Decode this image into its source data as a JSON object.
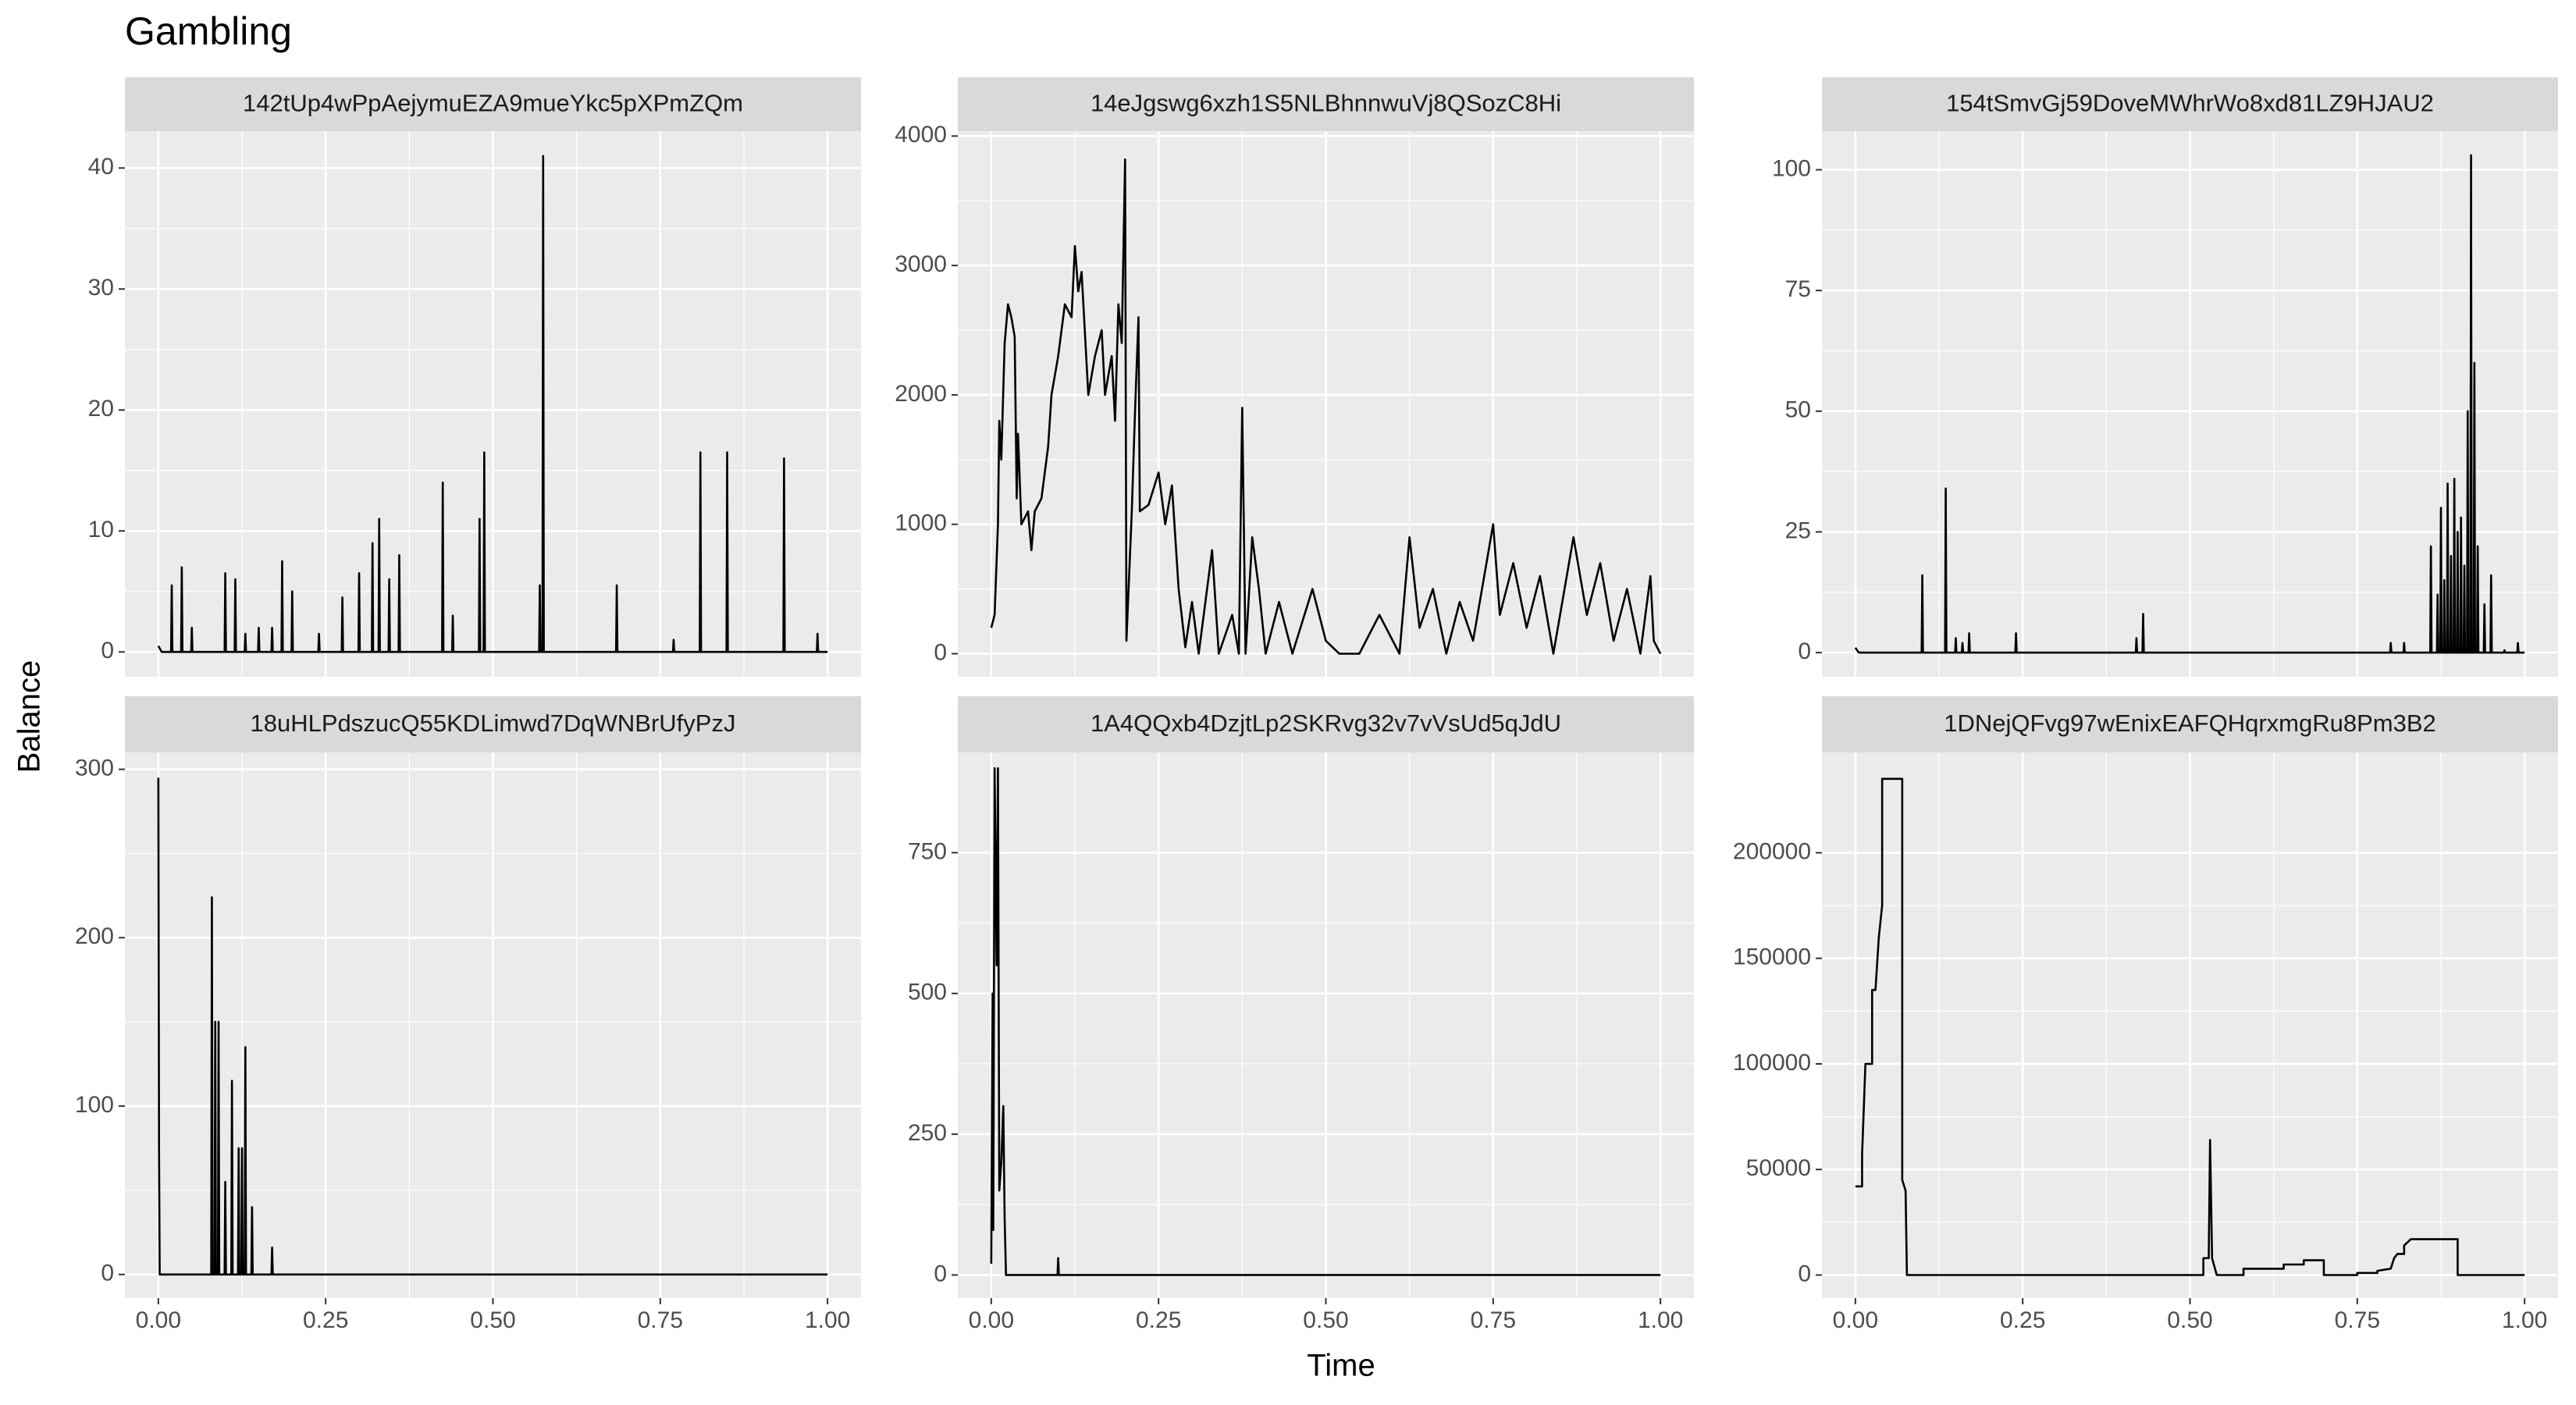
{
  "title": "Gambling",
  "xlabel": "Time",
  "ylabel": "Balance",
  "xlim": [
    -0.05,
    1.05
  ],
  "xticks": [
    {
      "value": 0,
      "label": "0.00"
    },
    {
      "value": 0.25,
      "label": "0.25"
    },
    {
      "value": 0.5,
      "label": "0.50"
    },
    {
      "value": 0.75,
      "label": "0.75"
    },
    {
      "value": 1,
      "label": "1.00"
    }
  ],
  "color": "#000000",
  "grid": true,
  "chart_data": [
    {
      "type": "line",
      "title": "142tUp4wPpAejymuEZA9mueYkc5pXPmZQm",
      "ylim": [
        -2.05,
        43.05
      ],
      "yticks": [
        0,
        10,
        20,
        30,
        40
      ],
      "x": [
        0,
        0.005,
        0.019,
        0.02,
        0.021,
        0.034,
        0.035,
        0.036,
        0.049,
        0.05,
        0.051,
        0.099,
        0.1,
        0.101,
        0.114,
        0.115,
        0.116,
        0.129,
        0.13,
        0.131,
        0.149,
        0.15,
        0.151,
        0.169,
        0.17,
        0.171,
        0.184,
        0.185,
        0.186,
        0.199,
        0.2,
        0.201,
        0.239,
        0.24,
        0.241,
        0.274,
        0.275,
        0.276,
        0.299,
        0.3,
        0.301,
        0.319,
        0.32,
        0.321,
        0.329,
        0.33,
        0.331,
        0.344,
        0.345,
        0.346,
        0.359,
        0.36,
        0.361,
        0.424,
        0.425,
        0.426,
        0.439,
        0.44,
        0.441,
        0.479,
        0.48,
        0.481,
        0.486,
        0.487,
        0.488,
        0.569,
        0.57,
        0.571,
        0.574,
        0.575,
        0.576,
        0.684,
        0.685,
        0.686,
        0.769,
        0.77,
        0.771,
        0.809,
        0.81,
        0.811,
        0.849,
        0.85,
        0.851,
        0.934,
        0.935,
        0.936,
        0.984,
        0.985,
        0.986,
        1.0
      ],
      "values": [
        0.5,
        0,
        0,
        5.5,
        0,
        0,
        7,
        0,
        0,
        2,
        0,
        0,
        6.5,
        0,
        0,
        6,
        0,
        0,
        1.5,
        0,
        0,
        2,
        0,
        0,
        2,
        0,
        0,
        7.5,
        0,
        0,
        5,
        0,
        0,
        1.5,
        0,
        0,
        4.5,
        0,
        0,
        6.5,
        0,
        0,
        9,
        0,
        0,
        11,
        0,
        0,
        6,
        0,
        0,
        8,
        0,
        0,
        14,
        0,
        0,
        3,
        0,
        0,
        11,
        0,
        0,
        16.5,
        0,
        0,
        5.5,
        0,
        0,
        41,
        0,
        0,
        5.5,
        0,
        0,
        1,
        0,
        0,
        16.5,
        0,
        0,
        16.5,
        0,
        0,
        16,
        0,
        0,
        1.5,
        0,
        0
      ]
    },
    {
      "type": "line",
      "title": "14eJgswg6xzh1S5NLBhnnwuVj8QSozC8Hi",
      "ylim": [
        -178,
        4038
      ],
      "yticks": [
        0,
        1000,
        2000,
        3000,
        4000
      ],
      "x": [
        0,
        0.005,
        0.01,
        0.012,
        0.015,
        0.02,
        0.025,
        0.03,
        0.035,
        0.038,
        0.04,
        0.045,
        0.055,
        0.06,
        0.065,
        0.075,
        0.085,
        0.09,
        0.1,
        0.11,
        0.12,
        0.125,
        0.13,
        0.135,
        0.145,
        0.155,
        0.165,
        0.17,
        0.18,
        0.185,
        0.19,
        0.195,
        0.2,
        0.202,
        0.21,
        0.215,
        0.22,
        0.222,
        0.235,
        0.25,
        0.26,
        0.27,
        0.28,
        0.29,
        0.3,
        0.31,
        0.33,
        0.34,
        0.36,
        0.37,
        0.375,
        0.38,
        0.39,
        0.4,
        0.41,
        0.43,
        0.45,
        0.48,
        0.5,
        0.52,
        0.55,
        0.58,
        0.61,
        0.625,
        0.64,
        0.66,
        0.68,
        0.7,
        0.72,
        0.75,
        0.76,
        0.78,
        0.8,
        0.82,
        0.84,
        0.87,
        0.89,
        0.91,
        0.93,
        0.95,
        0.97,
        0.985,
        0.99,
        1.0
      ],
      "values": [
        200,
        300,
        1000,
        1800,
        1500,
        2400,
        2700,
        2600,
        2450,
        1200,
        1700,
        1000,
        1100,
        800,
        1100,
        1200,
        1600,
        2000,
        2300,
        2700,
        2600,
        3150,
        2800,
        2950,
        2000,
        2300,
        2500,
        2000,
        2300,
        1800,
        2700,
        2400,
        3820,
        100,
        1100,
        1900,
        2600,
        1100,
        1150,
        1400,
        1000,
        1300,
        500,
        50,
        400,
        0,
        800,
        0,
        300,
        0,
        1900,
        0,
        900,
        500,
        0,
        400,
        0,
        500,
        100,
        0,
        0,
        300,
        0,
        900,
        200,
        500,
        0,
        400,
        100,
        1000,
        300,
        700,
        200,
        600,
        0,
        900,
        300,
        700,
        100,
        500,
        0,
        600,
        100,
        0
      ]
    },
    {
      "type": "line",
      "title": "154tSmvGj59DoveMWhrWo8xd81LZ9HJAU2",
      "ylim": [
        -5,
        108
      ],
      "yticks": [
        0,
        25,
        50,
        75,
        100
      ],
      "x": [
        0,
        0.005,
        0.099,
        0.1,
        0.101,
        0.134,
        0.135,
        0.136,
        0.149,
        0.15,
        0.151,
        0.159,
        0.16,
        0.161,
        0.169,
        0.17,
        0.171,
        0.239,
        0.24,
        0.241,
        0.419,
        0.42,
        0.421,
        0.429,
        0.43,
        0.431,
        0.799,
        0.8,
        0.801,
        0.819,
        0.82,
        0.821,
        0.859,
        0.86,
        0.861,
        0.869,
        0.87,
        0.871,
        0.874,
        0.875,
        0.876,
        0.879,
        0.88,
        0.881,
        0.884,
        0.885,
        0.886,
        0.889,
        0.89,
        0.891,
        0.894,
        0.895,
        0.896,
        0.899,
        0.9,
        0.901,
        0.904,
        0.905,
        0.906,
        0.909,
        0.91,
        0.911,
        0.914,
        0.915,
        0.916,
        0.919,
        0.92,
        0.921,
        0.924,
        0.925,
        0.926,
        0.929,
        0.93,
        0.931,
        0.939,
        0.94,
        0.941,
        0.949,
        0.95,
        0.951,
        0.969,
        0.97,
        0.971,
        0.989,
        0.99,
        0.991,
        1.0
      ],
      "values": [
        1,
        0,
        0,
        16,
        0,
        0,
        34,
        0,
        0,
        3,
        0,
        0,
        2,
        0,
        0,
        4,
        0,
        0,
        4,
        0,
        0,
        3,
        0,
        0,
        8,
        0,
        0,
        2,
        0,
        0,
        2,
        0,
        0,
        22,
        0,
        0,
        12,
        0,
        0,
        30,
        0,
        0,
        15,
        0,
        0,
        35,
        0,
        0,
        20,
        0,
        0,
        36,
        0,
        0,
        25,
        0,
        0,
        28,
        0,
        0,
        18,
        0,
        0,
        50,
        0,
        0,
        103,
        0,
        0,
        60,
        0,
        0,
        22,
        0,
        0,
        10,
        0,
        0,
        16,
        0,
        0,
        0.5,
        0,
        0,
        2,
        0,
        0
      ]
    },
    {
      "type": "line",
      "title": "18uHLPdszucQ55KDLimwd7DqWNBrUfyPzJ",
      "ylim": [
        -14,
        310
      ],
      "yticks": [
        0,
        100,
        200,
        300
      ],
      "x": [
        0,
        0.001,
        0.002,
        0.079,
        0.08,
        0.081,
        0.084,
        0.085,
        0.086,
        0.089,
        0.09,
        0.091,
        0.099,
        0.1,
        0.101,
        0.109,
        0.11,
        0.111,
        0.119,
        0.12,
        0.121,
        0.124,
        0.125,
        0.126,
        0.129,
        0.13,
        0.131,
        0.139,
        0.14,
        0.141,
        0.169,
        0.17,
        0.171,
        1.0
      ],
      "values": [
        295,
        75,
        0,
        0,
        224,
        0,
        0,
        150,
        0,
        0,
        150,
        0,
        0,
        55,
        0,
        0,
        115,
        0,
        0,
        75,
        0,
        0,
        75,
        0,
        0,
        135,
        0,
        0,
        40,
        0,
        0,
        16,
        0,
        0
      ]
    },
    {
      "type": "line",
      "title": "1A4QQxb4DzjtLp2SKRvg32v7vVsUd5qJdU",
      "ylim": [
        -41,
        928
      ],
      "yticks": [
        0,
        250,
        500,
        750
      ],
      "x": [
        0,
        0.002,
        0.003,
        0.005,
        0.008,
        0.01,
        0.012,
        0.015,
        0.018,
        0.02,
        0.022,
        0.099,
        0.1,
        0.101,
        1.0
      ],
      "values": [
        20,
        500,
        80,
        900,
        550,
        900,
        150,
        200,
        300,
        100,
        0,
        0,
        30,
        0,
        0
      ]
    },
    {
      "type": "line",
      "title": "1DNejQFvg97wEnixEAFQHqrxmgRu8Pm3B2",
      "ylim": [
        -10900,
        247500
      ],
      "yticks": [
        0,
        50000,
        100000,
        150000,
        200000
      ],
      "x": [
        0,
        0.01,
        0.01,
        0.015,
        0.025,
        0.025,
        0.03,
        0.035,
        0.04,
        0.04,
        0.07,
        0.07,
        0.075,
        0.077,
        0.52,
        0.52,
        0.528,
        0.53,
        0.533,
        0.54,
        0.58,
        0.58,
        0.64,
        0.64,
        0.67,
        0.67,
        0.7,
        0.7,
        0.75,
        0.75,
        0.78,
        0.78,
        0.8,
        0.805,
        0.81,
        0.82,
        0.82,
        0.83,
        0.9,
        0.9,
        1.0
      ],
      "values": [
        42000,
        42000,
        57000,
        100000,
        100000,
        135000,
        135000,
        160000,
        175000,
        235000,
        235000,
        45000,
        40000,
        0,
        0,
        8000,
        8000,
        64000,
        8000,
        0,
        0,
        3000,
        3000,
        5000,
        5000,
        7000,
        7000,
        0,
        0,
        1000,
        1000,
        2000,
        3000,
        8000,
        10000,
        10000,
        14000,
        17000,
        17000,
        0,
        0
      ]
    }
  ]
}
